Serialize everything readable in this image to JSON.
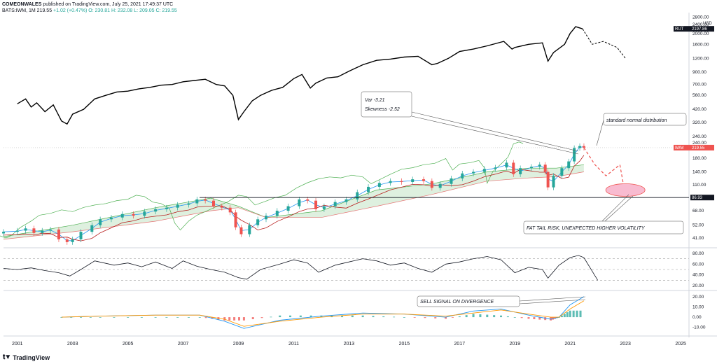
{
  "header": {
    "author": "COMEONWALES",
    "published": "published on TradingView.com, July 25, 2021 17:49:37 UTC",
    "symbol_line": "BATS:IWM, 1M",
    "last": "219.55",
    "change": "+1.02 (+0.47%)",
    "open": "O: 230.81",
    "high": "H: 232.08",
    "low": "L: 209.05",
    "close": "C: 219.55"
  },
  "branding": {
    "logo_text": "TradingView"
  },
  "colors": {
    "up": "#26a69a",
    "down": "#ef5350",
    "rut_line": "#000000",
    "ichimoku_cloud": "#c8e6c9",
    "ichimoku_line": "#4caf50",
    "ma_blue": "#2196f3",
    "ma_red": "#b71c1c",
    "macd_orange": "#ff9800",
    "annotation_ellipse": "#f8bbd0"
  },
  "chart_data": {
    "type": "line",
    "x_axis": {
      "ticks": [
        "2001",
        "2003",
        "2005",
        "2007",
        "2009",
        "2011",
        "2013",
        "2015",
        "2017",
        "2019",
        "2021",
        "2023",
        "2025"
      ],
      "range": [
        2000.5,
        2025.2
      ]
    },
    "panes": [
      {
        "name": "RUT",
        "label": "RUT",
        "price_label": "2197.86",
        "axis_unit": "USD",
        "yticks": [
          "2800.00",
          "2400.00",
          "2000.00",
          "1600.00",
          "1200.00",
          "900.00",
          "700.00",
          "560.00",
          "420.00",
          "320.00",
          "240.00"
        ],
        "ylim_log": [
          240,
          2900
        ],
        "x": [
          2001.0,
          2001.3,
          2001.5,
          2001.7,
          2002.0,
          2002.3,
          2002.6,
          2002.8,
          2003.0,
          2003.4,
          2003.8,
          2004.2,
          2004.6,
          2005.0,
          2005.4,
          2005.8,
          2006.2,
          2006.6,
          2007.0,
          2007.4,
          2007.8,
          2008.2,
          2008.5,
          2008.8,
          2009.0,
          2009.2,
          2009.5,
          2009.8,
          2010.2,
          2010.6,
          2011.0,
          2011.3,
          2011.6,
          2011.8,
          2012.2,
          2012.6,
          2013.0,
          2013.5,
          2014.0,
          2014.5,
          2015.0,
          2015.5,
          2016.0,
          2016.2,
          2016.6,
          2017.0,
          2017.5,
          2018.0,
          2018.6,
          2018.9,
          2019.0,
          2019.5,
          2020.0,
          2020.2,
          2020.4,
          2020.8,
          2021.0,
          2021.2,
          2021.45
        ],
        "values": [
          470,
          520,
          440,
          480,
          400,
          460,
          330,
          310,
          380,
          420,
          520,
          560,
          600,
          610,
          640,
          660,
          690,
          700,
          740,
          760,
          780,
          700,
          680,
          560,
          340,
          400,
          500,
          560,
          620,
          660,
          790,
          860,
          650,
          720,
          800,
          820,
          920,
          1050,
          1150,
          1180,
          1230,
          1250,
          1050,
          1080,
          1200,
          1380,
          1450,
          1550,
          1700,
          1450,
          1500,
          1600,
          1650,
          1130,
          1350,
          1600,
          2000,
          2300,
          2200
        ],
        "projection": {
          "x": [
            2021.45,
            2021.8,
            2022.2,
            2022.7,
            2023.0
          ],
          "values": [
            2200,
            1600,
            1700,
            1500,
            1200
          ]
        }
      },
      {
        "name": "IWM",
        "label": "IWM",
        "price_label": "219.55",
        "level_label": "86.93",
        "yticks": [
          "240.00",
          "180.00",
          "140.00",
          "110.00",
          "86.93",
          "68.00",
          "52.00",
          "41.00"
        ],
        "ylim_log": [
          36,
          270
        ],
        "candles_x": [
          2000.5,
          2001.0,
          2001.3,
          2001.6,
          2001.9,
          2002.2,
          2002.5,
          2002.8,
          2003.0,
          2003.3,
          2003.7,
          2004.0,
          2004.4,
          2004.8,
          2005.2,
          2005.6,
          2006.0,
          2006.4,
          2006.8,
          2007.2,
          2007.5,
          2007.8,
          2008.1,
          2008.4,
          2008.7,
          2008.9,
          2009.1,
          2009.4,
          2009.7,
          2010.0,
          2010.4,
          2010.8,
          2011.2,
          2011.5,
          2011.8,
          2012.1,
          2012.5,
          2012.9,
          2013.3,
          2013.7,
          2014.1,
          2014.5,
          2014.9,
          2015.3,
          2015.7,
          2016.0,
          2016.3,
          2016.7,
          2017.1,
          2017.5,
          2017.9,
          2018.3,
          2018.7,
          2018.95,
          2019.2,
          2019.6,
          2019.9,
          2020.1,
          2020.2,
          2020.4,
          2020.7,
          2020.95,
          2021.15,
          2021.35,
          2021.5
        ],
        "candles_close": [
          46,
          47,
          49,
          45,
          47,
          48,
          40,
          38,
          40,
          46,
          52,
          58,
          60,
          64,
          62,
          67,
          70,
          72,
          76,
          78,
          84,
          82,
          74,
          72,
          66,
          50,
          44,
          52,
          58,
          62,
          68,
          74,
          84,
          82,
          70,
          74,
          80,
          84,
          96,
          106,
          114,
          118,
          116,
          122,
          118,
          104,
          112,
          124,
          136,
          140,
          148,
          152,
          166,
          134,
          150,
          154,
          160,
          140,
          105,
          130,
          150,
          170,
          218,
          226,
          219.55
        ],
        "cloud_top_x": [
          2000.5,
          2003,
          2006,
          2008,
          2009,
          2010,
          2012,
          2014,
          2016,
          2018,
          2019.5,
          2020.5,
          2021.5
        ],
        "cloud_top": [
          42,
          52,
          72,
          86,
          74,
          60,
          68,
          100,
          112,
          140,
          150,
          150,
          160
        ],
        "cloud_bottom": [
          40,
          46,
          56,
          68,
          72,
          60,
          60,
          74,
          92,
          118,
          125,
          128,
          140
        ],
        "projection": {
          "x": [
            2021.5,
            2021.9,
            2022.3,
            2022.8,
            2023.0
          ],
          "values": [
            219.55,
            160,
            130,
            160,
            90
          ]
        }
      },
      {
        "name": "RSI",
        "yticks": [
          "80.00",
          "60.00",
          "40.00",
          "20.00"
        ],
        "ylim": [
          15,
          85
        ],
        "bands": [
          70,
          50,
          30
        ],
        "x": [
          2000.5,
          2001,
          2001.5,
          2002,
          2002.5,
          2002.9,
          2003.3,
          2003.8,
          2004.5,
          2005,
          2005.5,
          2006,
          2006.6,
          2007,
          2007.5,
          2008,
          2008.5,
          2009,
          2009.3,
          2009.8,
          2010.5,
          2011,
          2011.5,
          2011.9,
          2012.5,
          2013,
          2013.5,
          2014,
          2014.5,
          2015,
          2015.5,
          2016,
          2016.5,
          2017,
          2017.5,
          2018,
          2018.5,
          2019,
          2019.5,
          2020,
          2020.2,
          2020.6,
          2021,
          2021.3,
          2021.5
        ],
        "values": [
          52,
          50,
          53,
          48,
          44,
          38,
          50,
          66,
          58,
          62,
          55,
          64,
          52,
          66,
          56,
          50,
          45,
          35,
          32,
          50,
          60,
          68,
          62,
          45,
          58,
          64,
          70,
          66,
          58,
          62,
          52,
          45,
          60,
          64,
          70,
          74,
          68,
          44,
          54,
          50,
          34,
          58,
          72,
          76,
          72
        ],
        "projection": {
          "x": [
            2021.5,
            2022.0
          ],
          "values": [
            72,
            30
          ]
        }
      },
      {
        "name": "MACD",
        "yticks": [
          "20.00",
          "10.00",
          "0.00",
          "-10.00"
        ],
        "ylim": [
          -15,
          24
        ],
        "macd_x": [
          2002.6,
          2004,
          2006,
          2007.6,
          2008.5,
          2009.2,
          2010.5,
          2012,
          2013.5,
          2015,
          2016.5,
          2017.5,
          2018.5,
          2019.5,
          2020.3,
          2020.6,
          2021,
          2021.5
        ],
        "macd_values": [
          0,
          1,
          2,
          2,
          -4,
          -11,
          -3,
          1,
          4,
          3,
          0,
          6,
          8,
          2,
          -2,
          0,
          12,
          20
        ],
        "signal_values": [
          0,
          1,
          2,
          2,
          -2,
          -9,
          -4,
          0,
          3,
          3,
          1,
          4,
          7,
          3,
          0,
          0,
          8,
          16
        ]
      }
    ],
    "annotations": [
      {
        "text": "Var -3.21"
      },
      {
        "text": "Skewness -2.52"
      },
      {
        "text": "standard normal distribution"
      },
      {
        "text": "FAT TAIL RISK, UNEXPECTED HIGHER VOLATILITY"
      },
      {
        "text": "SELL SIGNAL ON DIVERGENCE"
      }
    ]
  }
}
